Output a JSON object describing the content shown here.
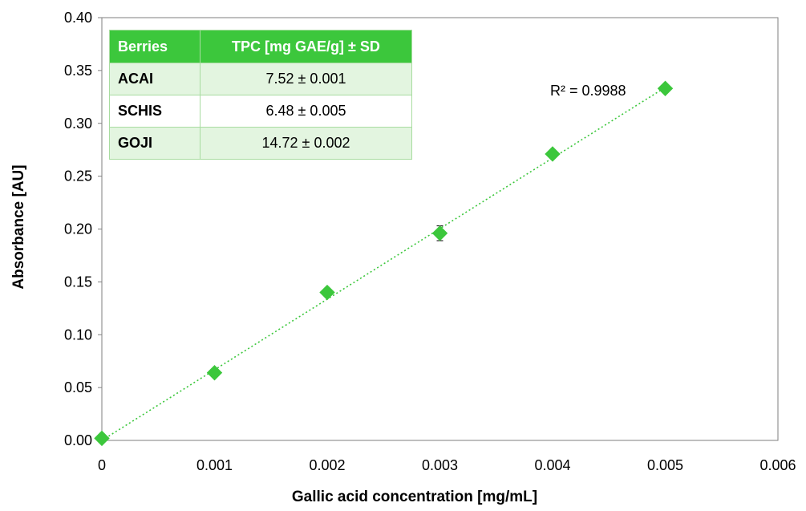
{
  "chart_data": {
    "type": "scatter",
    "xlabel": "Gallic acid concentration [mg/mL]",
    "ylabel": "Absorbance [AU]",
    "xlim": [
      0,
      0.006
    ],
    "ylim": [
      0,
      0.4
    ],
    "x_ticks": [
      "0",
      "0.001",
      "0.002",
      "0.003",
      "0.004",
      "0.005",
      "0.006"
    ],
    "y_ticks": [
      "0.00",
      "0.05",
      "0.10",
      "0.15",
      "0.20",
      "0.25",
      "0.30",
      "0.35",
      "0.40"
    ],
    "grid": false,
    "marker": "diamond",
    "color": "#3cc73c",
    "series": [
      {
        "x": [
          0,
          0.001,
          0.002,
          0.003,
          0.004,
          0.005
        ],
        "y": [
          0.002,
          0.064,
          0.14,
          0.196,
          0.271,
          0.333
        ],
        "error": [
          0,
          0.001,
          0.002,
          0.007,
          0.002,
          0.001
        ]
      }
    ],
    "trendline": {
      "type": "linear",
      "style": "dotted",
      "from": [
        0,
        0.0
      ],
      "to": [
        0.005,
        0.334
      ]
    },
    "annotations": [
      {
        "text": "R² = 0.9988"
      }
    ]
  },
  "table": {
    "headers": [
      "Berries",
      "TPC [mg GAE/g] ± SD"
    ],
    "rows": [
      [
        "ACAI",
        "7.52 ± 0.001"
      ],
      [
        "SCHIS",
        "6.48 ± 0.005"
      ],
      [
        "GOJI",
        "14.72 ± 0.002"
      ]
    ]
  }
}
